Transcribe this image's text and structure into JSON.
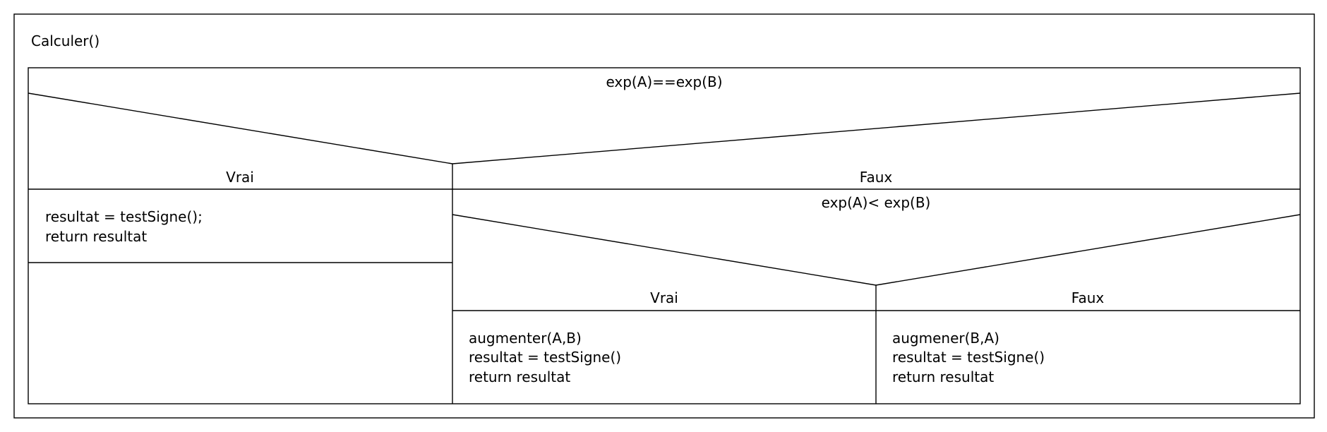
{
  "function_title": "Calculer()",
  "outer_condition": {
    "text": "exp(A)==exp(B)",
    "true_label": "Vrai",
    "false_label": "Faux"
  },
  "outer_true_block": {
    "lines": [
      "resultat = testSigne();",
      "return resultat"
    ]
  },
  "inner_condition": {
    "text": "exp(A)< exp(B)",
    "true_label": "Vrai",
    "false_label": "Faux"
  },
  "inner_true_block": {
    "lines": [
      "augmenter(A,B)",
      "resultat = testSigne()",
      "return resultat"
    ]
  },
  "inner_false_block": {
    "lines": [
      "augmener(B,A)",
      "resultat = testSigne()",
      "return resultat"
    ]
  }
}
